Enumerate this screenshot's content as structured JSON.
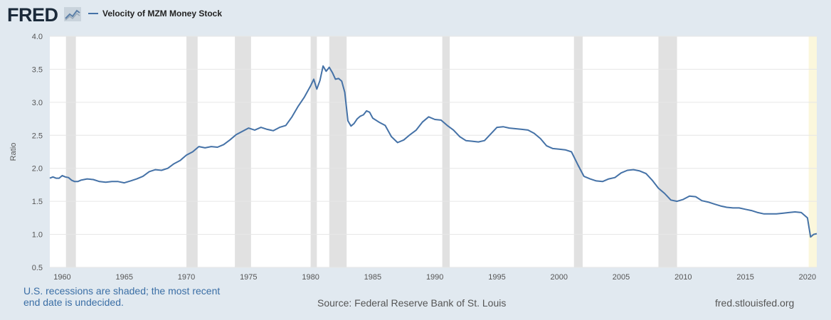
{
  "brand": {
    "logo_text": "FRED",
    "logo_icon": "chart-line-icon"
  },
  "chart_data": {
    "type": "line",
    "title": "Velocity of MZM Money Stock",
    "ylabel": "Ratio",
    "xlabel": "",
    "xlim": [
      1959.0,
      2020.75
    ],
    "ylim": [
      0.5,
      4.0
    ],
    "grid": true,
    "legend_position": "top-left",
    "x_ticks": [
      1960,
      1965,
      1970,
      1975,
      1980,
      1985,
      1990,
      1995,
      2000,
      2005,
      2010,
      2015,
      2020
    ],
    "y_ticks": [
      0.5,
      1.0,
      1.5,
      2.0,
      2.5,
      3.0,
      3.5,
      4.0
    ],
    "x_tick_labels": [
      "1960",
      "1965",
      "1970",
      "1975",
      "1980",
      "1985",
      "1990",
      "1995",
      "2000",
      "2005",
      "2010",
      "2015",
      "2020"
    ],
    "y_tick_labels": [
      "0.5",
      "1.0",
      "1.5",
      "2.0",
      "2.5",
      "3.0",
      "3.5",
      "4.0"
    ],
    "recessions": [
      {
        "start": 1960.3,
        "end": 1961.1
      },
      {
        "start": 1970.0,
        "end": 1970.9
      },
      {
        "start": 1973.9,
        "end": 1975.2
      },
      {
        "start": 1980.0,
        "end": 1980.5
      },
      {
        "start": 1981.5,
        "end": 1982.9
      },
      {
        "start": 1990.6,
        "end": 1991.2
      },
      {
        "start": 2001.2,
        "end": 2001.9
      },
      {
        "start": 2008.0,
        "end": 2009.5
      }
    ],
    "undecided_recession": {
      "start": 2020.1,
      "end": 2020.75
    },
    "series": [
      {
        "name": "Velocity of MZM Money Stock",
        "color": "#4572a7",
        "x": [
          1959.0,
          1959.25,
          1959.5,
          1959.75,
          1960.0,
          1960.25,
          1960.5,
          1960.75,
          1961.0,
          1961.25,
          1961.5,
          1961.75,
          1962.0,
          1962.5,
          1963.0,
          1963.5,
          1964.0,
          1964.5,
          1965.0,
          1965.5,
          1966.0,
          1966.5,
          1967.0,
          1967.5,
          1968.0,
          1968.5,
          1969.0,
          1969.5,
          1970.0,
          1970.5,
          1971.0,
          1971.5,
          1972.0,
          1972.5,
          1973.0,
          1973.5,
          1974.0,
          1974.5,
          1975.0,
          1975.5,
          1976.0,
          1976.5,
          1977.0,
          1977.5,
          1978.0,
          1978.5,
          1979.0,
          1979.5,
          1980.0,
          1980.25,
          1980.5,
          1980.75,
          1981.0,
          1981.25,
          1981.5,
          1981.75,
          1982.0,
          1982.25,
          1982.5,
          1982.75,
          1983.0,
          1983.25,
          1983.5,
          1983.75,
          1984.0,
          1984.25,
          1984.5,
          1984.75,
          1985.0,
          1985.5,
          1986.0,
          1986.5,
          1987.0,
          1987.5,
          1988.0,
          1988.5,
          1989.0,
          1989.5,
          1990.0,
          1990.5,
          1991.0,
          1991.5,
          1992.0,
          1992.5,
          1993.0,
          1993.5,
          1994.0,
          1994.5,
          1995.0,
          1995.5,
          1996.0,
          1996.5,
          1997.0,
          1997.5,
          1998.0,
          1998.5,
          1999.0,
          1999.5,
          2000.0,
          2000.5,
          2001.0,
          2001.5,
          2002.0,
          2002.5,
          2003.0,
          2003.5,
          2004.0,
          2004.5,
          2005.0,
          2005.5,
          2006.0,
          2006.5,
          2007.0,
          2007.5,
          2008.0,
          2008.5,
          2009.0,
          2009.5,
          2010.0,
          2010.5,
          2011.0,
          2011.5,
          2012.0,
          2012.5,
          2013.0,
          2013.5,
          2014.0,
          2014.5,
          2015.0,
          2015.5,
          2016.0,
          2016.5,
          2017.0,
          2017.5,
          2018.0,
          2018.5,
          2019.0,
          2019.5,
          2020.0,
          2020.25,
          2020.5,
          2020.75
        ],
        "values": [
          1.85,
          1.87,
          1.85,
          1.85,
          1.89,
          1.87,
          1.86,
          1.82,
          1.8,
          1.8,
          1.82,
          1.83,
          1.84,
          1.83,
          1.8,
          1.79,
          1.8,
          1.8,
          1.78,
          1.81,
          1.84,
          1.88,
          1.95,
          1.98,
          1.97,
          2.0,
          2.07,
          2.12,
          2.2,
          2.25,
          2.33,
          2.31,
          2.33,
          2.32,
          2.36,
          2.43,
          2.51,
          2.56,
          2.61,
          2.58,
          2.62,
          2.59,
          2.57,
          2.62,
          2.65,
          2.78,
          2.94,
          3.08,
          3.25,
          3.35,
          3.2,
          3.33,
          3.55,
          3.47,
          3.53,
          3.45,
          3.35,
          3.36,
          3.32,
          3.15,
          2.72,
          2.64,
          2.68,
          2.75,
          2.79,
          2.81,
          2.87,
          2.85,
          2.76,
          2.7,
          2.65,
          2.48,
          2.39,
          2.43,
          2.51,
          2.58,
          2.7,
          2.78,
          2.74,
          2.73,
          2.65,
          2.58,
          2.48,
          2.42,
          2.41,
          2.4,
          2.42,
          2.52,
          2.62,
          2.63,
          2.61,
          2.6,
          2.59,
          2.58,
          2.53,
          2.45,
          2.34,
          2.3,
          2.29,
          2.28,
          2.25,
          2.06,
          1.88,
          1.84,
          1.81,
          1.8,
          1.84,
          1.86,
          1.93,
          1.97,
          1.98,
          1.96,
          1.92,
          1.82,
          1.7,
          1.62,
          1.52,
          1.5,
          1.53,
          1.58,
          1.57,
          1.51,
          1.49,
          1.46,
          1.43,
          1.41,
          1.4,
          1.4,
          1.38,
          1.36,
          1.33,
          1.31,
          1.31,
          1.31,
          1.32,
          1.33,
          1.34,
          1.33,
          1.25,
          0.96,
          1.0,
          1.01
        ]
      }
    ]
  },
  "footer": {
    "recession_note": "U.S. recessions are shaded; the most recent end date is undecided.",
    "source": "Source: Federal Reserve Bank of St. Louis",
    "site": "fred.stlouisfed.org"
  }
}
